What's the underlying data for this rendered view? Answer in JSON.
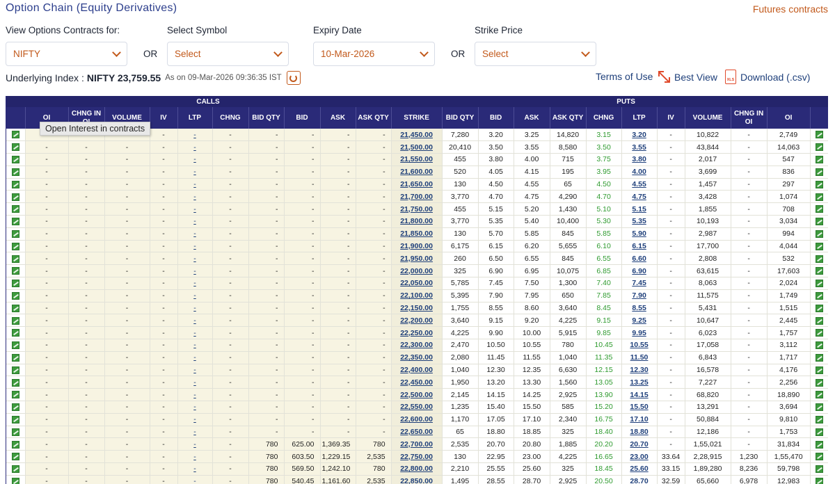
{
  "header": {
    "title": "Option Chain (Equity Derivatives)",
    "futures_link": "Futures contracts"
  },
  "filters": {
    "view_label": "View Options Contracts for:",
    "view_value": "NIFTY",
    "or1": "OR",
    "symbol_label": "Select Symbol",
    "symbol_value": "Select",
    "expiry_label": "Expiry Date",
    "expiry_value": "10-Mar-2026",
    "or2": "OR",
    "strike_label": "Strike Price",
    "strike_value": "Select"
  },
  "underlying": {
    "label": "Underlying Index :",
    "value": "NIFTY 23,759.55",
    "timestamp": "As on 09-Mar-2026 09:36:35 IST"
  },
  "actions": {
    "terms": "Terms of Use",
    "best_view": "Best View",
    "download": "Download (.csv)",
    "xls": "XLS"
  },
  "table": {
    "calls_label": "CALLS",
    "puts_label": "PUTS",
    "columns": [
      "OI",
      "CHNG IN OI",
      "VOLUME",
      "IV",
      "LTP",
      "CHNG",
      "BID QTY",
      "BID",
      "ASK",
      "ASK QTY",
      "STRIKE",
      "BID QTY",
      "BID",
      "ASK",
      "ASK QTY",
      "CHNG",
      "LTP",
      "IV",
      "VOLUME",
      "CHNG IN OI",
      "OI"
    ],
    "tooltip": "Open Interest in contracts",
    "rows": [
      {
        "calls": [
          "-",
          "-",
          "-",
          "-",
          "-",
          "-",
          "-",
          "-",
          "-",
          "-"
        ],
        "strike": "21,450.00",
        "puts": [
          "7,280",
          "3.20",
          "3.25",
          "14,820",
          "3.15",
          "3.20",
          "-",
          "10,822",
          "-",
          "2,749"
        ]
      },
      {
        "calls": [
          "-",
          "-",
          "-",
          "-",
          "-",
          "-",
          "-",
          "-",
          "-",
          "-"
        ],
        "strike": "21,500.00",
        "puts": [
          "20,410",
          "3.50",
          "3.55",
          "8,580",
          "3.50",
          "3.55",
          "-",
          "43,844",
          "-",
          "14,063"
        ]
      },
      {
        "calls": [
          "-",
          "-",
          "-",
          "-",
          "-",
          "-",
          "-",
          "-",
          "-",
          "-"
        ],
        "strike": "21,550.00",
        "puts": [
          "455",
          "3.80",
          "4.00",
          "715",
          "3.75",
          "3.80",
          "-",
          "2,017",
          "-",
          "547"
        ]
      },
      {
        "calls": [
          "-",
          "-",
          "-",
          "-",
          "-",
          "-",
          "-",
          "-",
          "-",
          "-"
        ],
        "strike": "21,600.00",
        "puts": [
          "520",
          "4.05",
          "4.15",
          "195",
          "3.95",
          "4.00",
          "-",
          "3,699",
          "-",
          "836"
        ]
      },
      {
        "calls": [
          "-",
          "-",
          "-",
          "-",
          "-",
          "-",
          "-",
          "-",
          "-",
          "-"
        ],
        "strike": "21,650.00",
        "puts": [
          "130",
          "4.50",
          "4.55",
          "65",
          "4.50",
          "4.55",
          "-",
          "1,457",
          "-",
          "297"
        ]
      },
      {
        "calls": [
          "-",
          "-",
          "-",
          "-",
          "-",
          "-",
          "-",
          "-",
          "-",
          "-"
        ],
        "strike": "21,700.00",
        "puts": [
          "3,770",
          "4.70",
          "4.75",
          "4,290",
          "4.70",
          "4.75",
          "-",
          "3,428",
          "-",
          "1,074"
        ]
      },
      {
        "calls": [
          "-",
          "-",
          "-",
          "-",
          "-",
          "-",
          "-",
          "-",
          "-",
          "-"
        ],
        "strike": "21,750.00",
        "puts": [
          "455",
          "5.15",
          "5.20",
          "1,430",
          "5.10",
          "5.15",
          "-",
          "1,855",
          "-",
          "708"
        ]
      },
      {
        "calls": [
          "-",
          "-",
          "-",
          "-",
          "-",
          "-",
          "-",
          "-",
          "-",
          "-"
        ],
        "strike": "21,800.00",
        "puts": [
          "3,770",
          "5.35",
          "5.40",
          "10,400",
          "5.30",
          "5.35",
          "-",
          "10,193",
          "-",
          "3,034"
        ]
      },
      {
        "calls": [
          "-",
          "-",
          "-",
          "-",
          "-",
          "-",
          "-",
          "-",
          "-",
          "-"
        ],
        "strike": "21,850.00",
        "puts": [
          "130",
          "5.70",
          "5.85",
          "845",
          "5.85",
          "5.90",
          "-",
          "2,987",
          "-",
          "994"
        ]
      },
      {
        "calls": [
          "-",
          "-",
          "-",
          "-",
          "-",
          "-",
          "-",
          "-",
          "-",
          "-"
        ],
        "strike": "21,900.00",
        "puts": [
          "6,175",
          "6.15",
          "6.20",
          "5,655",
          "6.10",
          "6.15",
          "-",
          "17,700",
          "-",
          "4,044"
        ]
      },
      {
        "calls": [
          "-",
          "-",
          "-",
          "-",
          "-",
          "-",
          "-",
          "-",
          "-",
          "-"
        ],
        "strike": "21,950.00",
        "puts": [
          "260",
          "6.50",
          "6.55",
          "845",
          "6.55",
          "6.60",
          "-",
          "2,808",
          "-",
          "532"
        ]
      },
      {
        "calls": [
          "-",
          "-",
          "-",
          "-",
          "-",
          "-",
          "-",
          "-",
          "-",
          "-"
        ],
        "strike": "22,000.00",
        "puts": [
          "325",
          "6.90",
          "6.95",
          "10,075",
          "6.85",
          "6.90",
          "-",
          "63,615",
          "-",
          "17,603"
        ]
      },
      {
        "calls": [
          "-",
          "-",
          "-",
          "-",
          "-",
          "-",
          "-",
          "-",
          "-",
          "-"
        ],
        "strike": "22,050.00",
        "puts": [
          "5,785",
          "7.45",
          "7.50",
          "1,300",
          "7.40",
          "7.45",
          "-",
          "8,063",
          "-",
          "2,024"
        ]
      },
      {
        "calls": [
          "-",
          "-",
          "-",
          "-",
          "-",
          "-",
          "-",
          "-",
          "-",
          "-"
        ],
        "strike": "22,100.00",
        "puts": [
          "5,395",
          "7.90",
          "7.95",
          "650",
          "7.85",
          "7.90",
          "-",
          "11,575",
          "-",
          "1,749"
        ]
      },
      {
        "calls": [
          "-",
          "-",
          "-",
          "-",
          "-",
          "-",
          "-",
          "-",
          "-",
          "-"
        ],
        "strike": "22,150.00",
        "puts": [
          "1,755",
          "8.55",
          "8.60",
          "3,640",
          "8.45",
          "8.55",
          "-",
          "5,431",
          "-",
          "1,515"
        ]
      },
      {
        "calls": [
          "-",
          "-",
          "-",
          "-",
          "-",
          "-",
          "-",
          "-",
          "-",
          "-"
        ],
        "strike": "22,200.00",
        "puts": [
          "3,640",
          "9.15",
          "9.20",
          "4,225",
          "9.15",
          "9.25",
          "-",
          "10,647",
          "-",
          "2,445"
        ]
      },
      {
        "calls": [
          "-",
          "-",
          "-",
          "-",
          "-",
          "-",
          "-",
          "-",
          "-",
          "-"
        ],
        "strike": "22,250.00",
        "puts": [
          "4,225",
          "9.90",
          "10.00",
          "5,915",
          "9.85",
          "9.95",
          "-",
          "6,023",
          "-",
          "1,757"
        ]
      },
      {
        "calls": [
          "-",
          "-",
          "-",
          "-",
          "-",
          "-",
          "-",
          "-",
          "-",
          "-"
        ],
        "strike": "22,300.00",
        "puts": [
          "2,470",
          "10.50",
          "10.55",
          "780",
          "10.45",
          "10.55",
          "-",
          "17,058",
          "-",
          "3,112"
        ]
      },
      {
        "calls": [
          "-",
          "-",
          "-",
          "-",
          "-",
          "-",
          "-",
          "-",
          "-",
          "-"
        ],
        "strike": "22,350.00",
        "puts": [
          "2,080",
          "11.45",
          "11.55",
          "1,040",
          "11.35",
          "11.50",
          "-",
          "6,843",
          "-",
          "1,717"
        ]
      },
      {
        "calls": [
          "-",
          "-",
          "-",
          "-",
          "-",
          "-",
          "-",
          "-",
          "-",
          "-"
        ],
        "strike": "22,400.00",
        "puts": [
          "1,040",
          "12.30",
          "12.35",
          "6,630",
          "12.15",
          "12.30",
          "-",
          "16,578",
          "-",
          "4,176"
        ]
      },
      {
        "calls": [
          "-",
          "-",
          "-",
          "-",
          "-",
          "-",
          "-",
          "-",
          "-",
          "-"
        ],
        "strike": "22,450.00",
        "puts": [
          "1,950",
          "13.20",
          "13.30",
          "1,560",
          "13.05",
          "13.25",
          "-",
          "7,227",
          "-",
          "2,256"
        ]
      },
      {
        "calls": [
          "-",
          "-",
          "-",
          "-",
          "-",
          "-",
          "-",
          "-",
          "-",
          "-"
        ],
        "strike": "22,500.00",
        "puts": [
          "2,145",
          "14.15",
          "14.25",
          "2,925",
          "13.90",
          "14.15",
          "-",
          "68,820",
          "-",
          "18,890"
        ]
      },
      {
        "calls": [
          "-",
          "-",
          "-",
          "-",
          "-",
          "-",
          "-",
          "-",
          "-",
          "-"
        ],
        "strike": "22,550.00",
        "puts": [
          "1,235",
          "15.40",
          "15.50",
          "585",
          "15.20",
          "15.50",
          "-",
          "13,291",
          "-",
          "3,694"
        ]
      },
      {
        "calls": [
          "-",
          "-",
          "-",
          "-",
          "-",
          "-",
          "-",
          "-",
          "-",
          "-"
        ],
        "strike": "22,600.00",
        "puts": [
          "1,170",
          "17.05",
          "17.10",
          "2,340",
          "16.75",
          "17.10",
          "-",
          "50,884",
          "-",
          "9,810"
        ]
      },
      {
        "calls": [
          "-",
          "-",
          "-",
          "-",
          "-",
          "-",
          "-",
          "-",
          "-",
          "-"
        ],
        "strike": "22,650.00",
        "puts": [
          "65",
          "18.80",
          "18.85",
          "325",
          "18.40",
          "18.80",
          "-",
          "12,186",
          "-",
          "1,753"
        ]
      },
      {
        "calls": [
          "-",
          "-",
          "-",
          "-",
          "-",
          "-",
          "780",
          "625.00",
          "1,369.35",
          "780"
        ],
        "strike": "22,700.00",
        "puts": [
          "2,535",
          "20.70",
          "20.80",
          "1,885",
          "20.20",
          "20.70",
          "-",
          "1,55,021",
          "-",
          "31,834"
        ]
      },
      {
        "calls": [
          "-",
          "-",
          "-",
          "-",
          "-",
          "-",
          "780",
          "603.50",
          "1,229.15",
          "2,535"
        ],
        "strike": "22,750.00",
        "puts": [
          "130",
          "22.95",
          "23.00",
          "4,225",
          "16.65",
          "23.00",
          "33.64",
          "2,28,915",
          "1,230",
          "1,55,470"
        ]
      },
      {
        "calls": [
          "-",
          "-",
          "-",
          "-",
          "-",
          "-",
          "780",
          "569.50",
          "1,242.10",
          "780"
        ],
        "strike": "22,800.00",
        "puts": [
          "2,210",
          "25.55",
          "25.60",
          "325",
          "18.45",
          "25.60",
          "33.15",
          "1,89,280",
          "8,236",
          "59,798"
        ]
      },
      {
        "calls": [
          "-",
          "-",
          "-",
          "-",
          "-",
          "-",
          "780",
          "540.45",
          "1,161.60",
          "2,535"
        ],
        "strike": "22,850.00",
        "puts": [
          "1,495",
          "28.55",
          "28.70",
          "2,925",
          "20.50",
          "28.70",
          "32.59",
          "65,660",
          "6,978",
          "12,983"
        ]
      }
    ]
  }
}
